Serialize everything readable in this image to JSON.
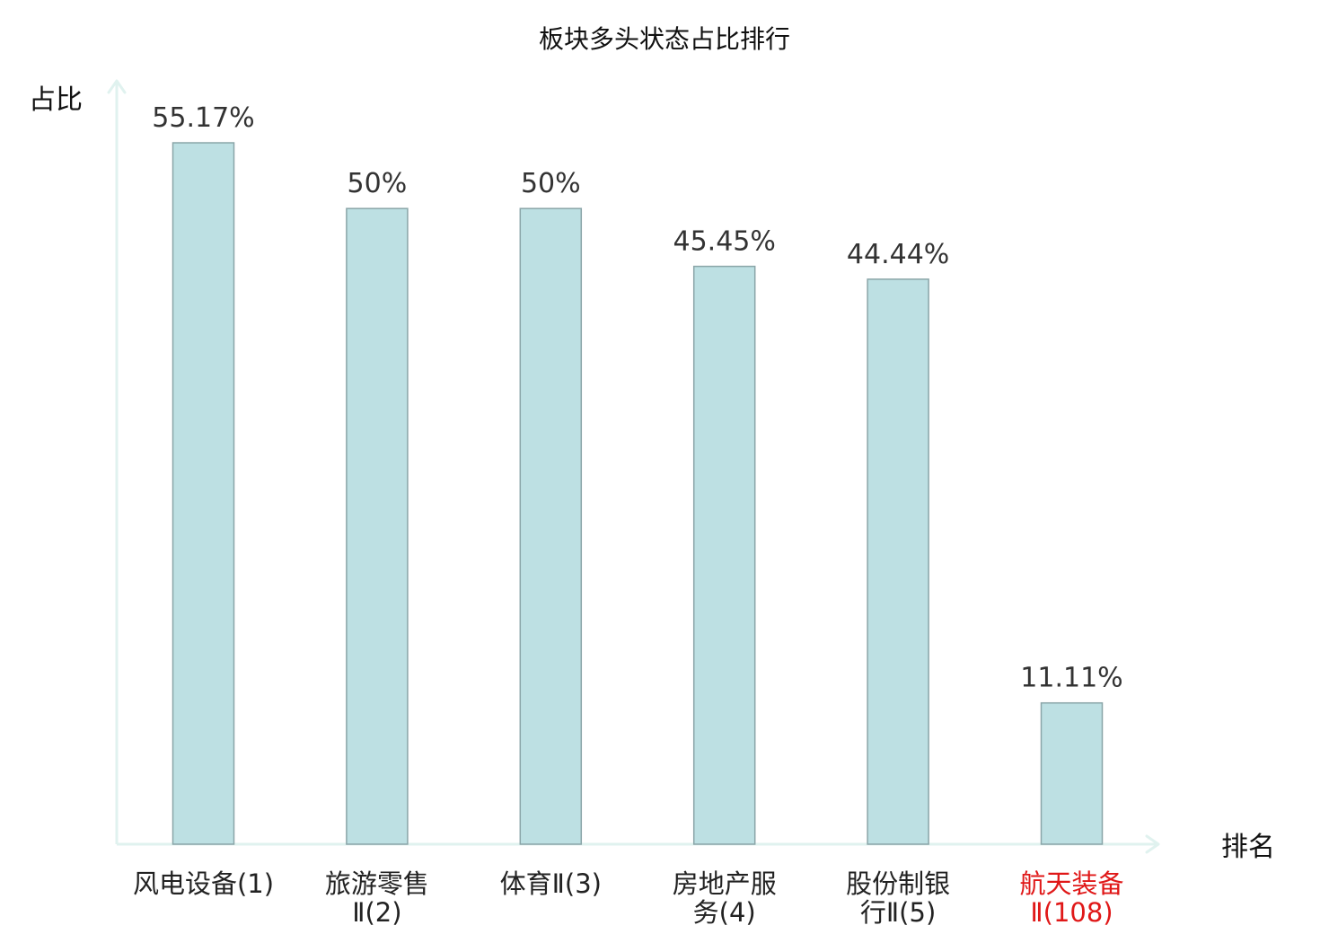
{
  "chart_data": {
    "type": "bar",
    "title": "板块多头状态占比排行",
    "xlabel": "排名",
    "ylabel": "占比",
    "categories": [
      [
        "风电设备(1)"
      ],
      [
        "旅游零售",
        "Ⅱ(2)"
      ],
      [
        "体育Ⅱ(3)"
      ],
      [
        "房地产服",
        "务(4)"
      ],
      [
        "股份制银",
        "行Ⅱ(5)"
      ],
      [
        "航天装备",
        "Ⅱ(108)"
      ]
    ],
    "values": [
      55.17,
      50,
      50,
      45.45,
      44.44,
      11.11
    ],
    "value_labels": [
      "55.17%",
      "50%",
      "50%",
      "45.45%",
      "44.44%",
      "11.11%"
    ],
    "highlight_index": 5,
    "ylim": [
      0,
      60
    ],
    "grid": false,
    "colors": {
      "bar_fill": "#bde0e3",
      "bar_stroke": "#8aa5a8",
      "axis": "#e0f2ef",
      "label": "#222222",
      "highlight": "#e01818"
    }
  }
}
